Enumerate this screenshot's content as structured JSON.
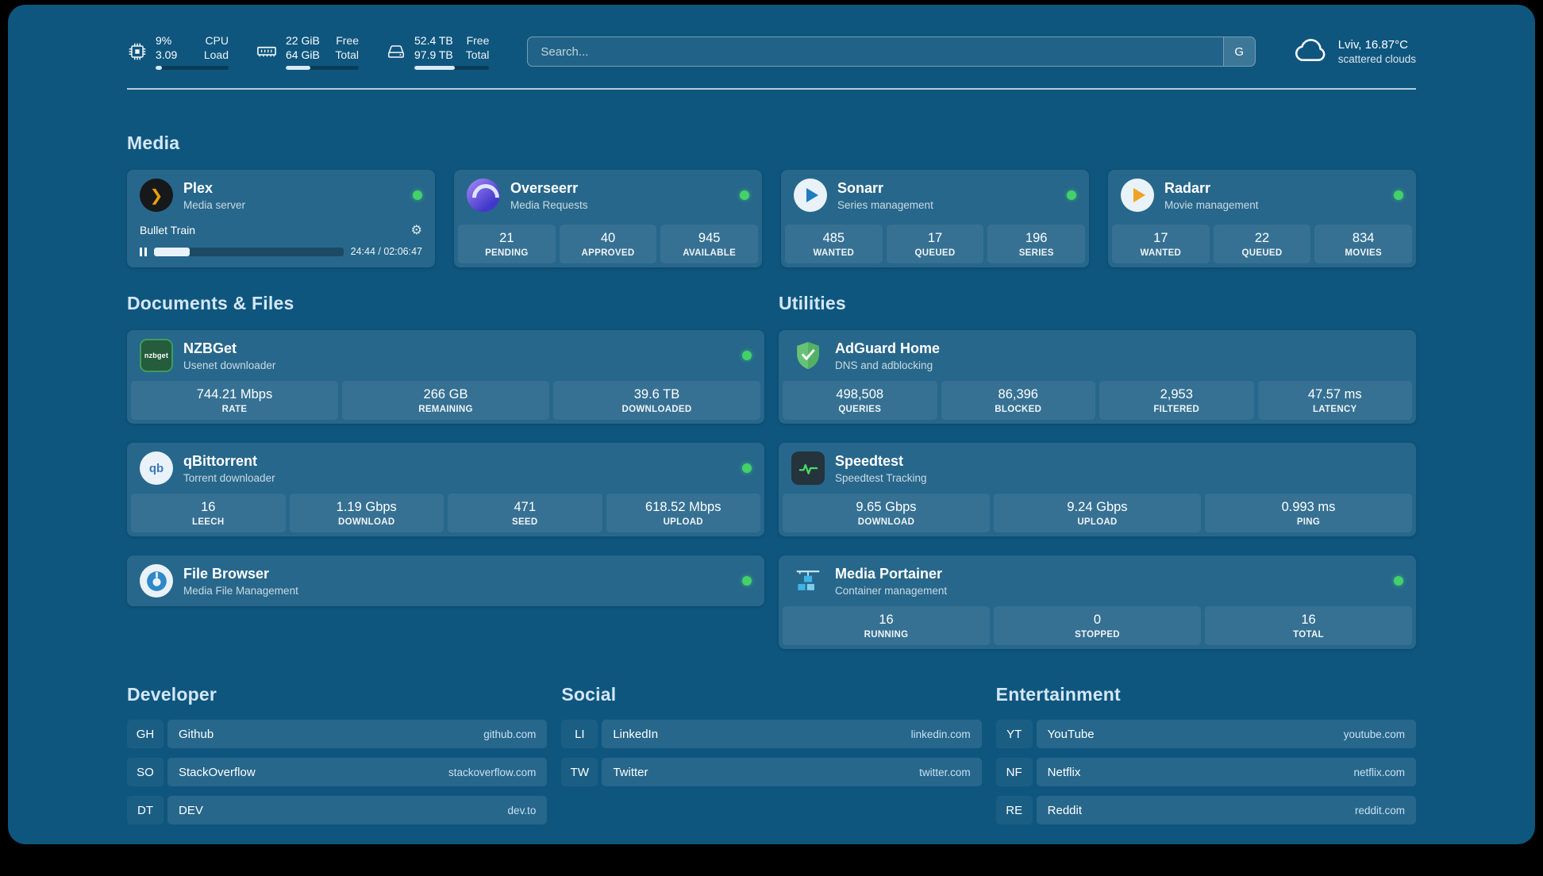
{
  "topbar": {
    "cpu": {
      "value_top": "9%",
      "value_bottom": "3.09",
      "label_top": "CPU",
      "label_bottom": "Load",
      "progress_percent": 9
    },
    "ram": {
      "value_top": "22 GiB",
      "value_bottom": "64 GiB",
      "label_top": "Free",
      "label_bottom": "Total",
      "progress_percent": 34
    },
    "disk": {
      "value_top": "52.4 TB",
      "value_bottom": "97.9 TB",
      "label_top": "Free",
      "label_bottom": "Total",
      "progress_percent": 54
    },
    "search": {
      "placeholder": "Search...",
      "button_label": "G"
    },
    "weather": {
      "location": "Lviv, 16.87°C",
      "condition": "scattered clouds"
    }
  },
  "sections": {
    "media": {
      "title": "Media"
    },
    "documents": {
      "title": "Documents & Files"
    },
    "utilities": {
      "title": "Utilities"
    },
    "developer": {
      "title": "Developer"
    },
    "social": {
      "title": "Social"
    },
    "entertainment": {
      "title": "Entertainment"
    }
  },
  "apps": {
    "plex": {
      "name": "Plex",
      "subtitle": "Media server",
      "online": true,
      "icon_glyph": "❯",
      "now_playing": {
        "title": "Bullet Train",
        "time": "24:44 / 02:06:47",
        "progress_percent": 19
      }
    },
    "overseerr": {
      "name": "Overseerr",
      "subtitle": "Media Requests",
      "online": true,
      "stats": [
        {
          "value": "21",
          "label": "PENDING"
        },
        {
          "value": "40",
          "label": "APPROVED"
        },
        {
          "value": "945",
          "label": "AVAILABLE"
        }
      ]
    },
    "sonarr": {
      "name": "Sonarr",
      "subtitle": "Series management",
      "online": true,
      "stats": [
        {
          "value": "485",
          "label": "WANTED"
        },
        {
          "value": "17",
          "label": "QUEUED"
        },
        {
          "value": "196",
          "label": "SERIES"
        }
      ]
    },
    "radarr": {
      "name": "Radarr",
      "subtitle": "Movie management",
      "online": true,
      "stats": [
        {
          "value": "17",
          "label": "WANTED"
        },
        {
          "value": "22",
          "label": "QUEUED"
        },
        {
          "value": "834",
          "label": "MOVIES"
        }
      ]
    },
    "nzbget": {
      "name": "NZBGet",
      "subtitle": "Usenet downloader",
      "online": true,
      "icon_text": "nzbget",
      "stats": [
        {
          "value": "744.21 Mbps",
          "label": "RATE"
        },
        {
          "value": "266 GB",
          "label": "REMAINING"
        },
        {
          "value": "39.6 TB",
          "label": "DOWNLOADED"
        }
      ]
    },
    "qbittorrent": {
      "name": "qBittorrent",
      "subtitle": "Torrent downloader",
      "online": true,
      "icon_text": "qb",
      "stats": [
        {
          "value": "16",
          "label": "LEECH"
        },
        {
          "value": "1.19 Gbps",
          "label": "DOWNLOAD"
        },
        {
          "value": "471",
          "label": "SEED"
        },
        {
          "value": "618.52 Mbps",
          "label": "UPLOAD"
        }
      ]
    },
    "filebrowser": {
      "name": "File Browser",
      "subtitle": "Media File Management",
      "online": true
    },
    "adguard": {
      "name": "AdGuard Home",
      "subtitle": "DNS and adblocking",
      "online": false,
      "stats": [
        {
          "value": "498,508",
          "label": "QUERIES"
        },
        {
          "value": "86,396",
          "label": "BLOCKED"
        },
        {
          "value": "2,953",
          "label": "FILTERED"
        },
        {
          "value": "47.57 ms",
          "label": "LATENCY"
        }
      ]
    },
    "speedtest": {
      "name": "Speedtest",
      "subtitle": "Speedtest Tracking",
      "online": false,
      "stats": [
        {
          "value": "9.65 Gbps",
          "label": "DOWNLOAD"
        },
        {
          "value": "9.24 Gbps",
          "label": "UPLOAD"
        },
        {
          "value": "0.993 ms",
          "label": "PING"
        }
      ]
    },
    "portainer": {
      "name": "Media Portainer",
      "subtitle": "Container management",
      "online": true,
      "stats": [
        {
          "value": "16",
          "label": "RUNNING"
        },
        {
          "value": "0",
          "label": "STOPPED"
        },
        {
          "value": "16",
          "label": "TOTAL"
        }
      ]
    }
  },
  "bookmarks": {
    "developer": [
      {
        "abbr": "GH",
        "name": "Github",
        "url": "github.com"
      },
      {
        "abbr": "SO",
        "name": "StackOverflow",
        "url": "stackoverflow.com"
      },
      {
        "abbr": "DT",
        "name": "DEV",
        "url": "dev.to"
      }
    ],
    "social": [
      {
        "abbr": "LI",
        "name": "LinkedIn",
        "url": "linkedin.com"
      },
      {
        "abbr": "TW",
        "name": "Twitter",
        "url": "twitter.com"
      }
    ],
    "entertainment": [
      {
        "abbr": "YT",
        "name": "YouTube",
        "url": "youtube.com"
      },
      {
        "abbr": "NF",
        "name": "Netflix",
        "url": "netflix.com"
      },
      {
        "abbr": "RE",
        "name": "Reddit",
        "url": "reddit.com"
      }
    ]
  },
  "colors": {
    "background": "#0f567e",
    "online_dot": "#43d16a",
    "accent_green": "#4cd964"
  }
}
